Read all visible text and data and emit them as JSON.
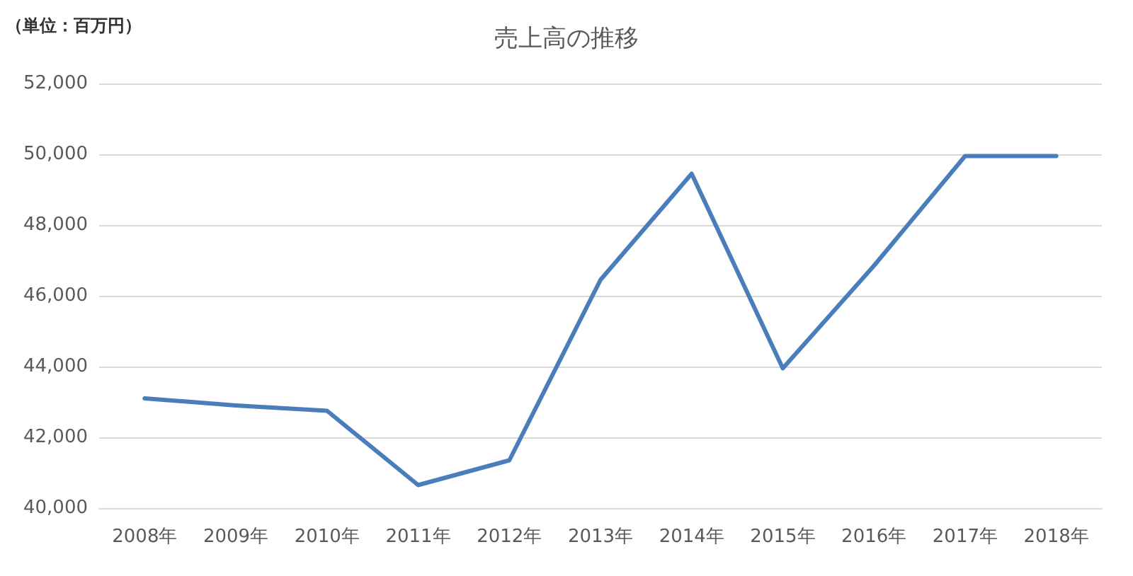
{
  "chart_data": {
    "type": "line",
    "title": "売上高の推移",
    "annotations": [
      "（単位：百万円）"
    ],
    "categories": [
      "2008年",
      "2009年",
      "2010年",
      "2011年",
      "2012年",
      "2013年",
      "2014年",
      "2015年",
      "2016年",
      "2017年",
      "2018年"
    ],
    "series": [
      {
        "color": "#4a7ebb",
        "values": [
          43100,
          42900,
          42750,
          40650,
          41350,
          46450,
          49450,
          43950,
          46850,
          49950,
          49950
        ]
      }
    ],
    "ylim": [
      40000,
      52000
    ],
    "yticks": [
      {
        "value": 40000,
        "label": "40,000"
      },
      {
        "value": 42000,
        "label": "42,000"
      },
      {
        "value": 44000,
        "label": "44,000"
      },
      {
        "value": 46000,
        "label": "46,000"
      },
      {
        "value": 48000,
        "label": "48,000"
      },
      {
        "value": 50000,
        "label": "50,000"
      },
      {
        "value": 52000,
        "label": "52,000"
      }
    ],
    "grid": "y",
    "marker": "none",
    "line_style": "solid"
  }
}
